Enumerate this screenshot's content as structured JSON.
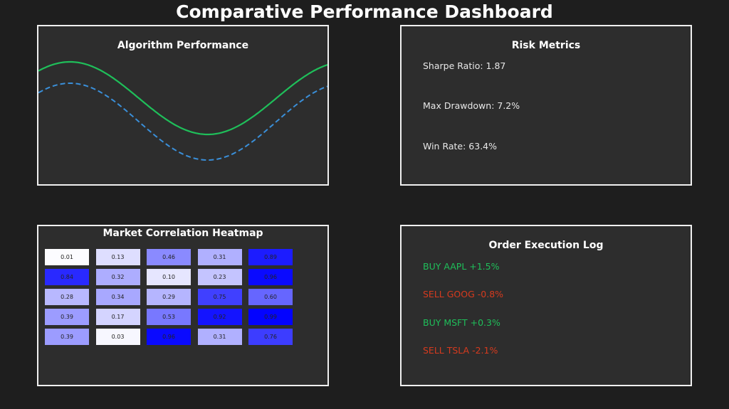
{
  "title": "Comparative Performance Dashboard",
  "performance": {
    "title": "Algorithm Performance",
    "chart_data": {
      "type": "line",
      "series": [
        {
          "style": "solid",
          "color": "#1fbf5a"
        },
        {
          "style": "dashed",
          "color": "#3a8fd9"
        }
      ]
    }
  },
  "risk": {
    "title": "Risk Metrics",
    "metrics": [
      "Sharpe Ratio: 1.87",
      "Max Drawdown: 7.2%",
      "Win Rate: 63.4%"
    ]
  },
  "heatmap": {
    "title": "Market Correlation Heatmap",
    "chart_data": {
      "type": "heatmap",
      "values": [
        [
          0.01,
          0.13,
          0.46,
          0.31,
          0.89
        ],
        [
          0.84,
          0.32,
          0.1,
          0.23,
          0.96
        ],
        [
          0.28,
          0.34,
          0.29,
          0.75,
          0.6
        ],
        [
          0.39,
          0.17,
          0.53,
          0.92,
          0.99
        ],
        [
          0.39,
          0.03,
          0.96,
          0.31,
          0.76
        ]
      ],
      "labels": [
        [
          "0.01",
          "0.13",
          "0.46",
          "0.31",
          "0.89"
        ],
        [
          "0.84",
          "0.32",
          "0.10",
          "0.23",
          "0.96"
        ],
        [
          "0.28",
          "0.34",
          "0.29",
          "0.75",
          "0.60"
        ],
        [
          "0.39",
          "0.17",
          "0.53",
          "0.92",
          "0.99"
        ],
        [
          "0.39",
          "0.03",
          "0.96",
          "0.31",
          "0.76"
        ]
      ],
      "colormap": "white-to-blue",
      "max_color": "#0000ff"
    }
  },
  "orders": {
    "title": "Order Execution Log",
    "entries": [
      {
        "text": "BUY AAPL +1.5%",
        "color": "#1fbf5a"
      },
      {
        "text": "SELL GOOG -0.8%",
        "color": "#d63a1e"
      },
      {
        "text": "BUY MSFT +0.3%",
        "color": "#1fbf5a"
      },
      {
        "text": "SELL TSLA -2.1%",
        "color": "#d63a1e"
      }
    ]
  }
}
